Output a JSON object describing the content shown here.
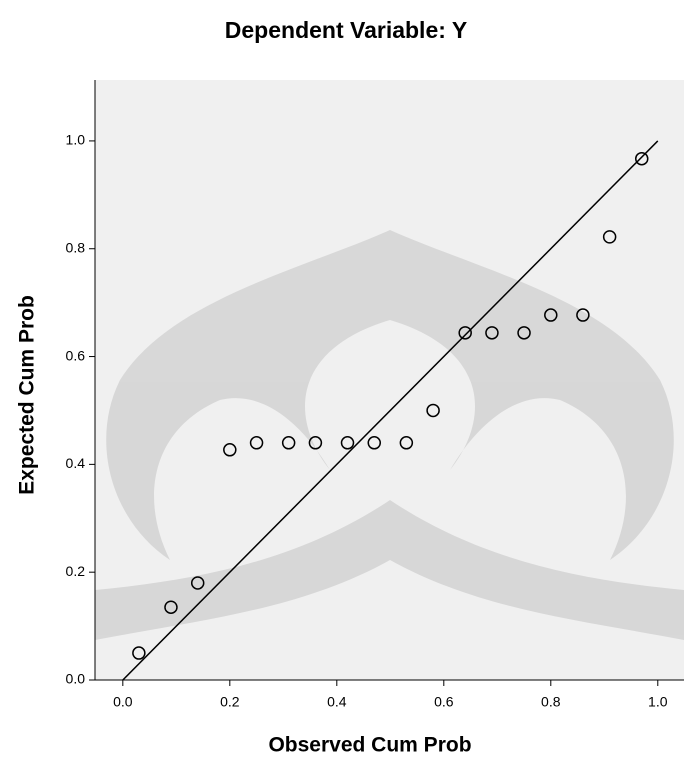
{
  "chart_data": {
    "type": "scatter",
    "title": "Dependent Variable: Y",
    "x_label": "Observed Cum Prob",
    "y_label": "Expected Cum Prob",
    "x": [
      0.03,
      0.09,
      0.14,
      0.2,
      0.25,
      0.31,
      0.36,
      0.42,
      0.47,
      0.53,
      0.58,
      0.64,
      0.69,
      0.75,
      0.8,
      0.86,
      0.91,
      0.97
    ],
    "values": [
      0.05,
      0.135,
      0.18,
      0.427,
      0.44,
      0.44,
      0.44,
      0.44,
      0.44,
      0.44,
      0.5,
      0.644,
      0.644,
      0.644,
      0.677,
      0.677,
      0.822,
      0.967
    ],
    "color": "#000000",
    "reference_line": {
      "x": [
        0,
        1
      ],
      "y": [
        0,
        1
      ]
    },
    "xlim": [
      -0.052,
      1.049
    ],
    "ylim": [
      0,
      1.113
    ],
    "xticks": [
      {
        "value": 0,
        "label": "0.0"
      },
      0.2,
      0.4,
      0.6,
      0.8,
      {
        "value": 1,
        "label": "1.0"
      }
    ],
    "yticks": [
      {
        "value": 0,
        "label": "0.0"
      },
      0.2,
      0.4,
      0.6,
      0.8,
      {
        "value": 1,
        "label": "1.0"
      }
    ]
  }
}
